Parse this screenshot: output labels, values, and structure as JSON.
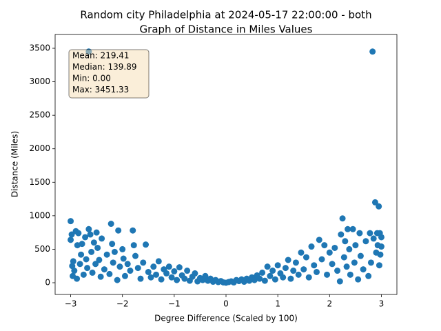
{
  "chart_data": {
    "type": "scatter",
    "title": [
      "Random city Philadelphia at 2024-05-17 22:00:00  - both",
      "Graph of Distance in Miles Values"
    ],
    "x_label": "Degree Difference (Scaled by 100)",
    "y_label": "Distance (Miles)",
    "annotation": [
      "Mean: 219.41",
      "Median: 139.89",
      "Min: 0.00",
      "Max: 3451.33"
    ],
    "color": "#1f77b4",
    "xlim": [
      -3.3,
      3.3
    ],
    "ylim": [
      -175,
      3706
    ],
    "xticks": [
      {
        "value": -3,
        "label": "−3"
      },
      {
        "value": -2,
        "label": "−2"
      },
      {
        "value": -1,
        "label": "−1"
      },
      0,
      1,
      2,
      3
    ],
    "yticks": [
      0,
      500,
      1000,
      1500,
      2000,
      2500,
      3000,
      3500
    ],
    "x": [
      -3.0,
      -3.0,
      -2.98,
      -2.97,
      -2.96,
      -2.95,
      -2.93,
      -2.9,
      -2.88,
      -2.87,
      -2.85,
      -2.82,
      -2.8,
      -2.78,
      -2.75,
      -2.72,
      -2.7,
      -2.68,
      -2.65,
      -2.65,
      -2.62,
      -2.6,
      -2.58,
      -2.55,
      -2.52,
      -2.5,
      -2.48,
      -2.45,
      -2.42,
      -2.4,
      -2.35,
      -2.3,
      -2.25,
      -2.22,
      -2.2,
      -2.18,
      -2.15,
      -2.1,
      -2.08,
      -2.05,
      -2.0,
      -1.98,
      -1.95,
      -1.9,
      -1.85,
      -1.8,
      -1.78,
      -1.75,
      -1.7,
      -1.65,
      -1.6,
      -1.55,
      -1.5,
      -1.45,
      -1.4,
      -1.35,
      -1.3,
      -1.25,
      -1.2,
      -1.15,
      -1.1,
      -1.05,
      -1.0,
      -0.95,
      -0.9,
      -0.85,
      -0.8,
      -0.75,
      -0.7,
      -0.65,
      -0.6,
      -0.55,
      -0.5,
      -0.45,
      -0.4,
      -0.35,
      -0.3,
      -0.25,
      -0.2,
      -0.15,
      -0.1,
      -0.05,
      0.0,
      0.05,
      0.1,
      0.15,
      0.2,
      0.25,
      0.3,
      0.35,
      0.4,
      0.45,
      0.5,
      0.55,
      0.6,
      0.65,
      0.7,
      0.75,
      0.8,
      0.85,
      0.9,
      0.95,
      1.0,
      1.05,
      1.1,
      1.15,
      1.2,
      1.25,
      1.3,
      1.35,
      1.4,
      1.45,
      1.5,
      1.55,
      1.6,
      1.65,
      1.7,
      1.75,
      1.8,
      1.85,
      1.9,
      1.95,
      2.0,
      2.05,
      2.1,
      2.15,
      2.2,
      2.22,
      2.25,
      2.28,
      2.3,
      2.33,
      2.35,
      2.38,
      2.4,
      2.45,
      2.48,
      2.5,
      2.55,
      2.58,
      2.6,
      2.65,
      2.7,
      2.75,
      2.78,
      2.8,
      2.83,
      2.85,
      2.88,
      2.9,
      2.92,
      2.93,
      2.95,
      2.96,
      2.97,
      2.98,
      3.0,
      3.0
    ],
    "y": [
      920,
      640,
      720,
      250,
      100,
      320,
      180,
      770,
      60,
      560,
      740,
      280,
      420,
      580,
      120,
      680,
      350,
      220,
      3451,
      800,
      720,
      460,
      150,
      600,
      280,
      750,
      520,
      340,
      90,
      660,
      200,
      420,
      130,
      880,
      580,
      300,
      460,
      40,
      780,
      240,
      500,
      360,
      100,
      280,
      180,
      780,
      560,
      400,
      220,
      60,
      300,
      570,
      160,
      80,
      240,
      120,
      320,
      50,
      200,
      140,
      240,
      80,
      170,
      40,
      230,
      110,
      60,
      180,
      30,
      90,
      140,
      20,
      70,
      40,
      100,
      30,
      60,
      15,
      40,
      10,
      25,
      5,
      0,
      10,
      20,
      5,
      40,
      25,
      50,
      15,
      60,
      30,
      80,
      40,
      110,
      60,
      150,
      30,
      240,
      100,
      180,
      50,
      260,
      140,
      80,
      220,
      340,
      60,
      180,
      300,
      120,
      450,
      200,
      380,
      80,
      540,
      260,
      160,
      640,
      350,
      560,
      120,
      450,
      280,
      520,
      180,
      20,
      720,
      960,
      380,
      620,
      240,
      800,
      500,
      120,
      800,
      300,
      560,
      50,
      740,
      400,
      200,
      620,
      100,
      740,
      300,
      3451,
      660,
      1200,
      450,
      740,
      560,
      1140,
      260,
      740,
      420,
      540,
      680
    ]
  }
}
